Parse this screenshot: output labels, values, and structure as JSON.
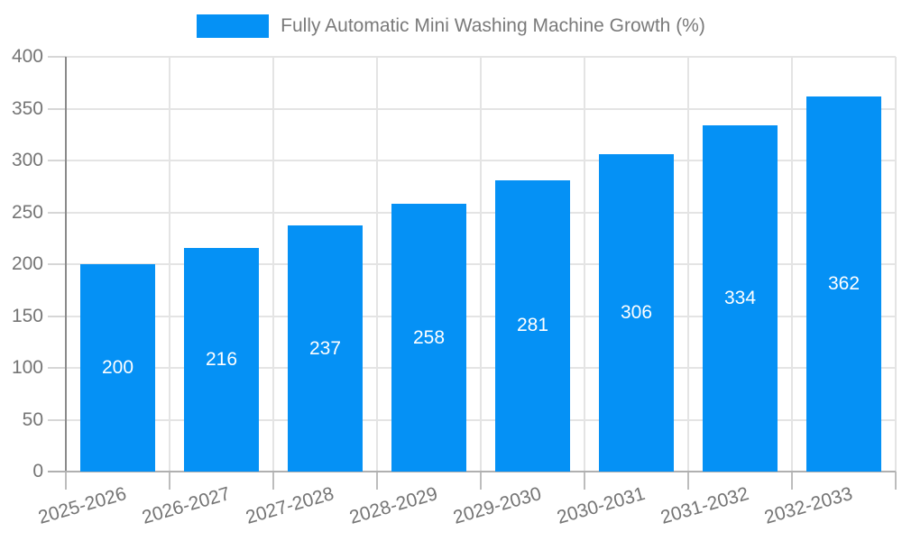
{
  "legend": {
    "label": "Fully Automatic Mini Washing Machine Growth (%)"
  },
  "colors": {
    "bar": "#0591f5",
    "bar_label": "#ffffff",
    "axis_text": "#757575",
    "legend_text": "#7a7a7a",
    "grid": "#e4e4e4",
    "y_axis_line": "#8a8a8a",
    "x_axis_line": "#b0b0b0",
    "tick": "#bdbdbd",
    "background": "#ffffff"
  },
  "chart_data": {
    "type": "bar",
    "title": "",
    "legend": "Fully Automatic Mini Washing Machine Growth (%)",
    "legend_position": "top",
    "categories": [
      "2025-2026",
      "2026-2027",
      "2027-2028",
      "2028-2029",
      "2029-2030",
      "2030-2031",
      "2031-2032",
      "2032-2033"
    ],
    "values": [
      200,
      216,
      237,
      258,
      281,
      306,
      334,
      362
    ],
    "xlabel": "",
    "ylabel": "",
    "ylim": [
      0,
      400
    ],
    "yticks": [
      0,
      50,
      100,
      150,
      200,
      250,
      300,
      350,
      400
    ],
    "grid": true,
    "x_label_rotation_deg": -16,
    "bar_labels_inside": true
  }
}
